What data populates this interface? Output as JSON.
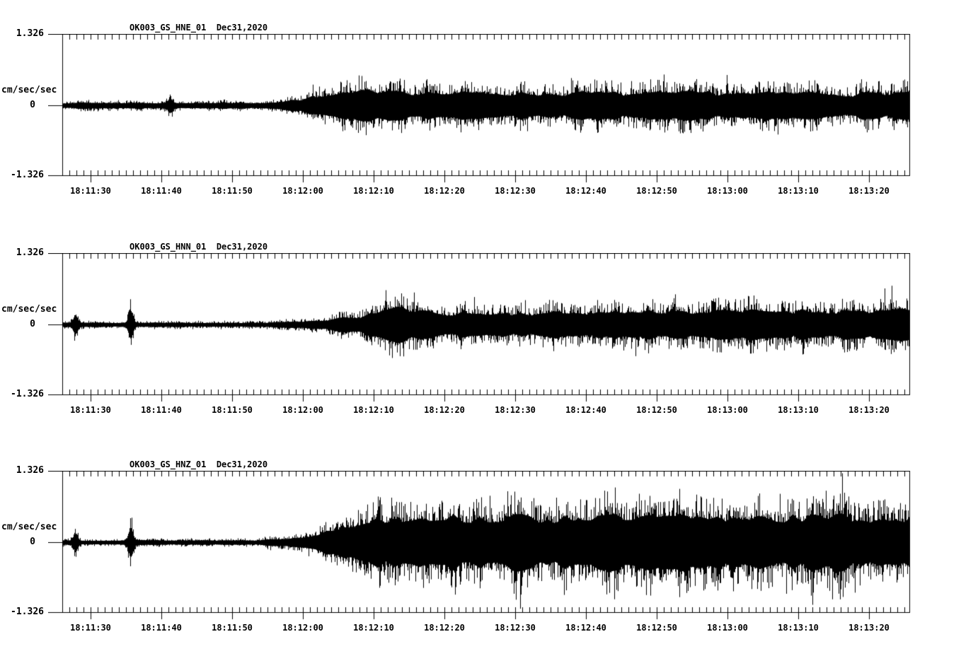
{
  "figure": {
    "background_color": "#ffffff",
    "trace_color": "#000000",
    "y_axis": {
      "top_label": "1.326",
      "zero_label": "0",
      "bottom_label": "-1.326",
      "units_label": "cm/sec/sec"
    },
    "x_tick_labels": [
      "18:11:30",
      "18:11:40",
      "18:11:50",
      "18:12:00",
      "18:12:10",
      "18:12:20",
      "18:12:30",
      "18:12:40",
      "18:12:50",
      "18:13:00",
      "18:13:10",
      "18:13:20"
    ],
    "panels": [
      {
        "id": "hne",
        "title": "OK003_GS_HNE_01  Dec31,2020"
      },
      {
        "id": "hnn",
        "title": "OK003_GS_HNN_01  Dec31,2020"
      },
      {
        "id": "hnz",
        "title": "OK003_GS_HNZ_01  Dec31,2020"
      }
    ]
  },
  "chart_data": [
    {
      "type": "line",
      "title": "OK003_GS_HNE_01  Dec31,2020",
      "station_channel": "OK003_GS_HNE_01",
      "date": "Dec31,2020",
      "ylabel": "cm/sec/sec",
      "ylim": [
        -1.326,
        1.326
      ],
      "y_ticks": [
        1.326,
        0,
        -1.326
      ],
      "x_start_time": "18:11:26",
      "x_end_time": "18:13:26",
      "x_tick_labels": [
        "18:11:30",
        "18:11:40",
        "18:11:50",
        "18:12:00",
        "18:12:10",
        "18:12:20",
        "18:12:30",
        "18:12:40",
        "18:12:50",
        "18:13:00",
        "18:13:10",
        "18:13:20"
      ],
      "seconds_per_pixel": 0.1,
      "envelope_t_seconds": [
        0,
        27,
        31,
        35,
        39,
        43,
        46,
        49,
        54,
        60,
        68,
        75,
        82,
        90,
        97,
        105,
        112,
        120
      ],
      "envelope_amplitude_cm_s2": [
        0.1,
        0.1,
        0.14,
        0.28,
        0.4,
        0.52,
        0.62,
        0.5,
        0.44,
        0.47,
        0.42,
        0.47,
        0.42,
        0.48,
        0.43,
        0.47,
        0.42,
        0.5
      ],
      "transients": [
        {
          "t": 15.2,
          "amp": 0.15
        }
      ],
      "seed": 7
    },
    {
      "type": "line",
      "title": "OK003_GS_HNN_01  Dec31,2020",
      "station_channel": "OK003_GS_HNN_01",
      "date": "Dec31,2020",
      "ylabel": "cm/sec/sec",
      "ylim": [
        -1.326,
        1.326
      ],
      "y_ticks": [
        1.326,
        0,
        -1.326
      ],
      "x_start_time": "18:11:26",
      "x_end_time": "18:13:26",
      "x_tick_labels": [
        "18:11:30",
        "18:11:40",
        "18:11:50",
        "18:12:00",
        "18:12:10",
        "18:12:20",
        "18:12:30",
        "18:12:40",
        "18:12:50",
        "18:13:00",
        "18:13:10",
        "18:13:20"
      ],
      "seconds_per_pixel": 0.1,
      "envelope_t_seconds": [
        0,
        29,
        34,
        38,
        42,
        45,
        47,
        50,
        55,
        62,
        70,
        78,
        85,
        92,
        100,
        108,
        115,
        120
      ],
      "envelope_amplitude_cm_s2": [
        0.075,
        0.075,
        0.12,
        0.2,
        0.3,
        0.5,
        0.64,
        0.48,
        0.42,
        0.4,
        0.43,
        0.46,
        0.5,
        0.47,
        0.52,
        0.5,
        0.52,
        0.5
      ],
      "transients": [
        {
          "t": 1.8,
          "amp": 0.26
        },
        {
          "t": 9.6,
          "amp": 0.42
        }
      ],
      "seed": 11
    },
    {
      "type": "line",
      "title": "OK003_GS_HNZ_01  Dec31,2020",
      "station_channel": "OK003_GS_HNZ_01",
      "date": "Dec31,2020",
      "ylabel": "cm/sec/sec",
      "ylim": [
        -1.326,
        1.326
      ],
      "y_ticks": [
        1.326,
        0,
        -1.326
      ],
      "x_start_time": "18:11:26",
      "x_end_time": "18:13:26",
      "x_tick_labels": [
        "18:11:30",
        "18:11:40",
        "18:11:50",
        "18:12:00",
        "18:12:10",
        "18:12:20",
        "18:12:30",
        "18:12:40",
        "18:12:50",
        "18:13:00",
        "18:13:10",
        "18:13:20"
      ],
      "seconds_per_pixel": 0.1,
      "envelope_t_seconds": [
        0,
        27,
        32,
        36,
        40,
        44,
        48,
        53,
        58,
        63,
        68,
        74,
        80,
        86,
        92,
        98,
        104,
        110,
        115,
        120
      ],
      "envelope_amplitude_cm_s2": [
        0.08,
        0.08,
        0.16,
        0.3,
        0.55,
        0.85,
        0.92,
        0.95,
        0.85,
        0.92,
        0.85,
        0.95,
        0.88,
        0.92,
        0.85,
        0.95,
        0.9,
        0.92,
        0.86,
        0.9
      ],
      "transients": [
        {
          "t": 1.8,
          "amp": 0.28
        },
        {
          "t": 9.6,
          "amp": 0.45
        }
      ],
      "seed": 13
    }
  ]
}
